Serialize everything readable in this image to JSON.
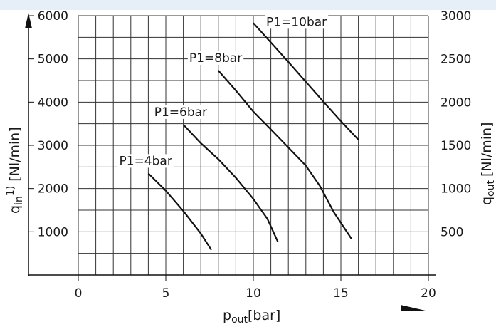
{
  "chart_data": {
    "type": "line",
    "x_axis": {
      "label": "p",
      "label_sub": "out",
      "label_unit": "[bar]",
      "min": 0,
      "max": 20,
      "ticks": [
        0,
        5,
        10,
        15,
        20
      ],
      "tick_labels": [
        "0",
        "5",
        "10",
        "15",
        "20"
      ]
    },
    "y_axis_left": {
      "label": "q",
      "label_sub": "in",
      "label_sup": "1)",
      "label_unit": "[Nl/min]",
      "min": 0,
      "max": 6000,
      "ticks": [
        1000,
        2000,
        3000,
        4000,
        5000,
        6000
      ],
      "tick_labels": [
        "1000",
        "2000",
        "3000",
        "4000",
        "5000",
        "6000"
      ]
    },
    "y_axis_right": {
      "label": "q",
      "label_sub": "out",
      "label_unit": "[Nl/min]",
      "min": 0,
      "max": 3000,
      "ticks": [
        500,
        1000,
        1500,
        2000,
        2500,
        3000
      ],
      "tick_labels": [
        "500",
        "1000",
        "1500",
        "2000",
        "2500",
        "3000"
      ]
    },
    "grid": true,
    "series": [
      {
        "name": "P1=4bar",
        "points": [
          [
            4.0,
            2350
          ],
          [
            5.0,
            1950
          ],
          [
            6.0,
            1480
          ],
          [
            7.0,
            960
          ],
          [
            7.6,
            580
          ]
        ]
      },
      {
        "name": "P1=6bar",
        "points": [
          [
            6.0,
            3480
          ],
          [
            7.0,
            3050
          ],
          [
            8.0,
            2680
          ],
          [
            9.0,
            2250
          ],
          [
            10.0,
            1760
          ],
          [
            10.8,
            1300
          ],
          [
            11.4,
            770
          ]
        ]
      },
      {
        "name": "P1=8bar",
        "points": [
          [
            8.0,
            4730
          ],
          [
            9.0,
            4270
          ],
          [
            10.0,
            3780
          ],
          [
            11.0,
            3370
          ],
          [
            12.0,
            2950
          ],
          [
            13.0,
            2530
          ],
          [
            13.8,
            2060
          ],
          [
            14.6,
            1450
          ],
          [
            15.6,
            840
          ]
        ]
      },
      {
        "name": "P1=10bar",
        "points": [
          [
            10.0,
            5830
          ],
          [
            11.0,
            5380
          ],
          [
            12.0,
            4930
          ],
          [
            13.0,
            4470
          ],
          [
            14.0,
            4010
          ],
          [
            15.0,
            3560
          ],
          [
            16.0,
            3130
          ]
        ]
      }
    ]
  }
}
